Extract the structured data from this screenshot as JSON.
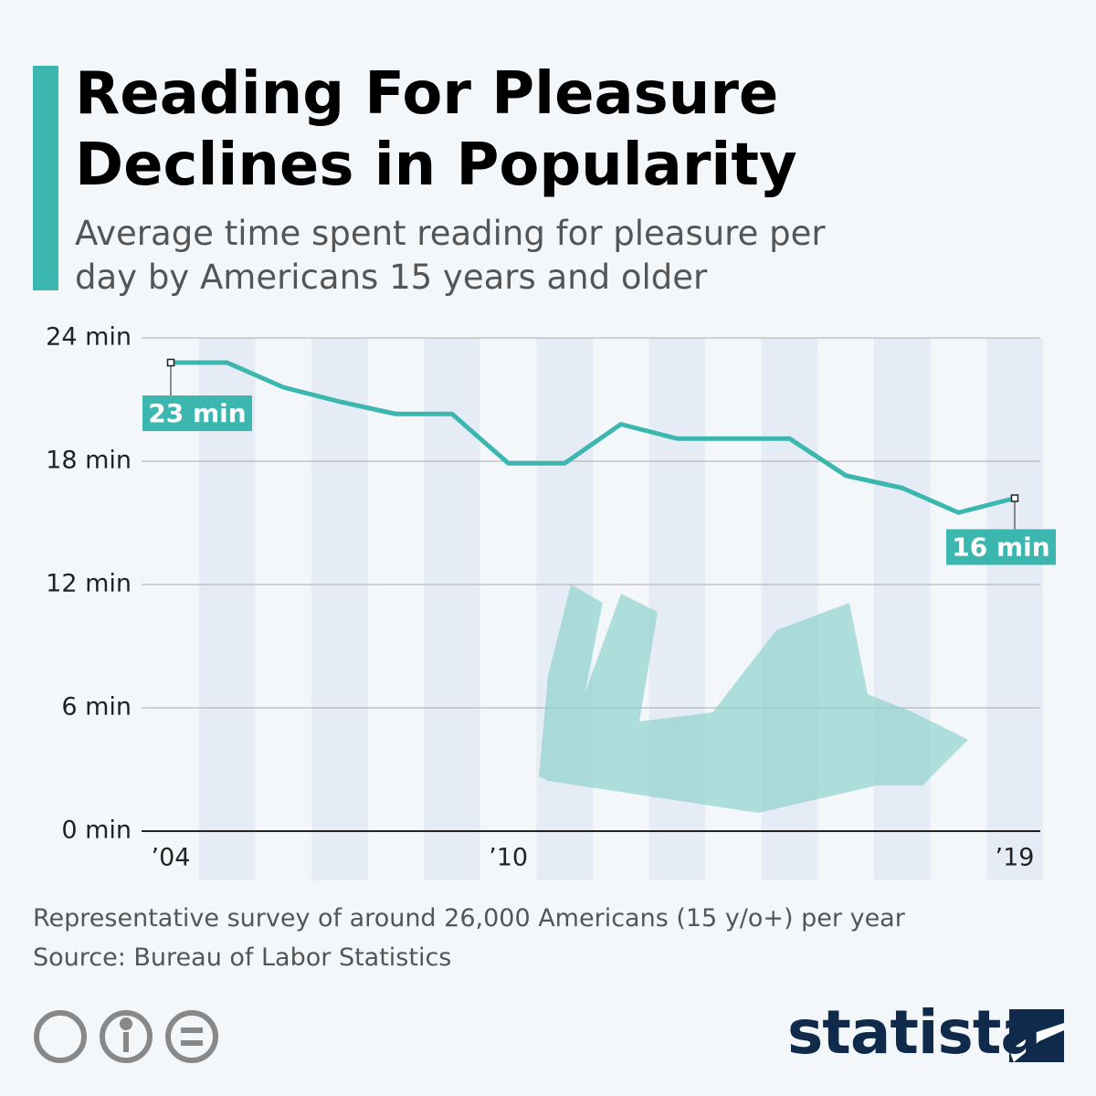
{
  "title": "Reading For Pleasure Declines in Popularity",
  "subtitle": "Average time spent reading for pleasure per day by Americans 15 years and older",
  "chart_data": {
    "type": "line",
    "x": [
      2004,
      2005,
      2006,
      2007,
      2008,
      2009,
      2010,
      2011,
      2012,
      2013,
      2014,
      2015,
      2016,
      2017,
      2018,
      2019
    ],
    "values": [
      22.8,
      22.8,
      21.6,
      20.9,
      20.3,
      20.3,
      17.9,
      17.9,
      19.8,
      19.1,
      19.1,
      19.1,
      17.3,
      16.7,
      15.5,
      16.2
    ],
    "value_labels": [
      "23 min",
      null,
      null,
      null,
      null,
      null,
      null,
      null,
      null,
      null,
      null,
      null,
      null,
      null,
      null,
      "16 min"
    ],
    "color": "#3cb7b0",
    "xlim": [
      2004,
      2019
    ],
    "xticks": [
      {
        "value": 2004,
        "label": "’04"
      },
      {
        "value": 2010,
        "label": "’10"
      },
      {
        "value": 2019,
        "label": "’19"
      }
    ],
    "ylim": [
      0,
      24
    ],
    "yticks": [
      {
        "value": 0,
        "label": "0 min"
      },
      {
        "value": 6,
        "label": "6 min"
      },
      {
        "value": 12,
        "label": "12 min"
      },
      {
        "value": 18,
        "label": "18 min"
      },
      {
        "value": 24,
        "label": "24 min"
      }
    ],
    "grid": true
  },
  "footer": {
    "note": "Representative survey of around 26,000 Americans (15 y/o+) per year",
    "source": "Source: Bureau of Labor Statistics",
    "brand": "statista"
  }
}
